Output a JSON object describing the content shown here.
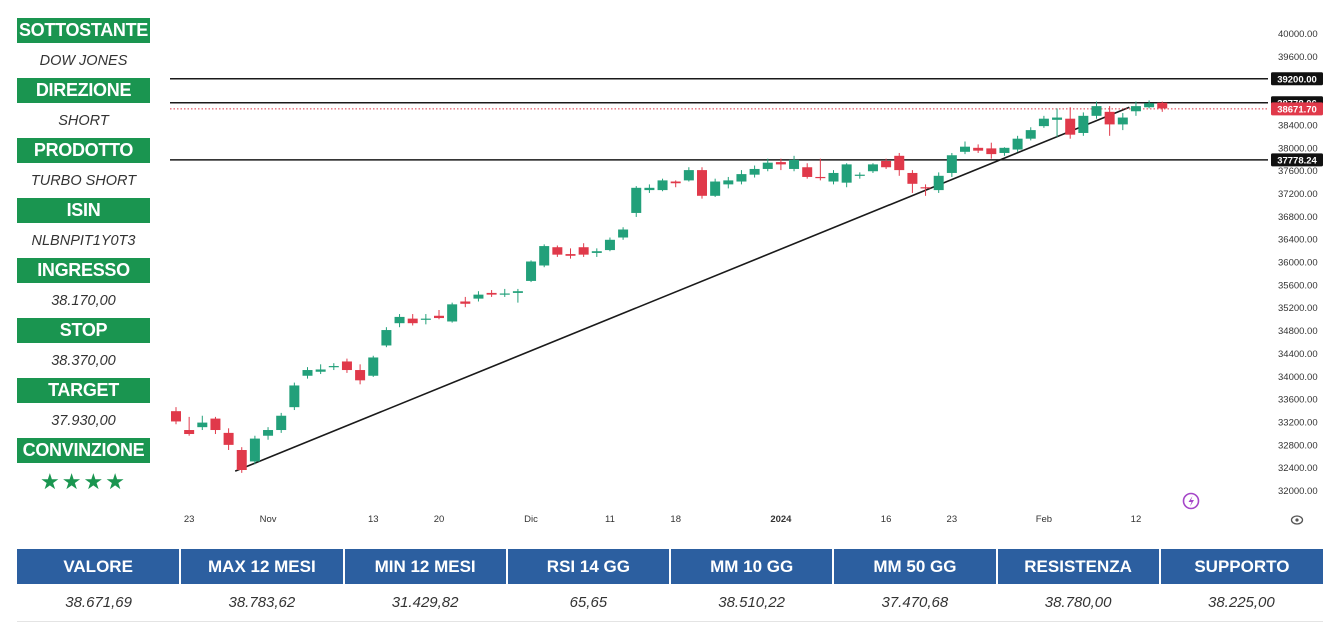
{
  "info_panel": {
    "items": [
      {
        "label": "SOTTOSTANTE",
        "value": "DOW JONES"
      },
      {
        "label": "DIREZIONE",
        "value": "SHORT"
      },
      {
        "label": "PRODOTTO",
        "value": "TURBO SHORT"
      },
      {
        "label": "ISIN",
        "value": "NLBNPIT1Y0T3"
      },
      {
        "label": "INGRESSO",
        "value": "38.170,00"
      },
      {
        "label": "STOP",
        "value": "38.370,00"
      },
      {
        "label": "TARGET",
        "value": "37.930,00"
      },
      {
        "label": "CONVINZIONE",
        "value": "★★★★"
      }
    ]
  },
  "stats": {
    "headers": [
      "VALORE",
      "MAX 12 MESI",
      "MIN 12 MESI",
      "RSI 14 GG",
      "MM 10 GG",
      "MM 50 GG",
      "RESISTENZA",
      "SUPPORTO"
    ],
    "values": [
      "38.671,69",
      "38.783,62",
      "31.429,82",
      "65,65",
      "38.510,22",
      "37.470,68",
      "38.780,00",
      "38.225,00"
    ]
  },
  "chart_data": {
    "type": "candlestick",
    "colors": {
      "up": "#22a07a",
      "down": "#e0394a"
    },
    "ylim": [
      31800,
      40200
    ],
    "y_ticks": [
      32000,
      32400,
      32800,
      33200,
      33600,
      34000,
      34400,
      34800,
      35200,
      35600,
      36000,
      36400,
      36800,
      37200,
      37600,
      38000,
      38400,
      38800,
      39200,
      39600,
      40000
    ],
    "y_tick_labels": [
      "32000.00",
      "32400.00",
      "32800.00",
      "33200.00",
      "33600.00",
      "34000.00",
      "34400.00",
      "34800.00",
      "35200.00",
      "35600.00",
      "36000.00",
      "36400.00",
      "36800.00",
      "37200.00",
      "37600.00",
      "38000.00",
      "38400.00",
      "38800.00",
      "39200.00",
      "39600.00",
      "40000.00"
    ],
    "x_tick_labels": [
      {
        "label": "23",
        "index": 1
      },
      {
        "label": "Nov",
        "index": 7
      },
      {
        "label": "13",
        "index": 15
      },
      {
        "label": "20",
        "index": 20
      },
      {
        "label": "Dic",
        "index": 27
      },
      {
        "label": "11",
        "index": 33
      },
      {
        "label": "18",
        "index": 38
      },
      {
        "label": "2024",
        "index": 46
      },
      {
        "label": "16",
        "index": 54
      },
      {
        "label": "23",
        "index": 59
      },
      {
        "label": "Feb",
        "index": 66
      },
      {
        "label": "12",
        "index": 73
      }
    ],
    "horizontal_levels": [
      {
        "value": 39200,
        "label": "39200.00",
        "style": "solid",
        "tag": "dark"
      },
      {
        "value": 38778.06,
        "label": "38778.06",
        "style": "solid",
        "tag": "dark"
      },
      {
        "value": 38671.7,
        "label": "38671.70",
        "style": "dotted",
        "tag": "red"
      },
      {
        "value": 37778.24,
        "label": "37778.24",
        "style": "solid",
        "tag": "dark"
      }
    ],
    "trendline": [
      {
        "index": 4.5,
        "value": 32330
      },
      {
        "index": 72.5,
        "value": 38700
      }
    ],
    "candles": [
      {
        "o": 33380,
        "h": 33450,
        "l": 33150,
        "c": 33200
      },
      {
        "o": 33050,
        "h": 33280,
        "l": 32950,
        "c": 32980
      },
      {
        "o": 33100,
        "h": 33300,
        "l": 33050,
        "c": 33180
      },
      {
        "o": 33250,
        "h": 33280,
        "l": 32980,
        "c": 33050
      },
      {
        "o": 33000,
        "h": 33080,
        "l": 32700,
        "c": 32790
      },
      {
        "o": 32700,
        "h": 32750,
        "l": 32300,
        "c": 32350
      },
      {
        "o": 32500,
        "h": 32950,
        "l": 32450,
        "c": 32900
      },
      {
        "o": 32950,
        "h": 33100,
        "l": 32880,
        "c": 33050
      },
      {
        "o": 33050,
        "h": 33350,
        "l": 33000,
        "c": 33300
      },
      {
        "o": 33450,
        "h": 33880,
        "l": 33400,
        "c": 33830
      },
      {
        "o": 34000,
        "h": 34150,
        "l": 33950,
        "c": 34100
      },
      {
        "o": 34070,
        "h": 34200,
        "l": 34030,
        "c": 34110
      },
      {
        "o": 34150,
        "h": 34220,
        "l": 34100,
        "c": 34170
      },
      {
        "o": 34250,
        "h": 34300,
        "l": 34050,
        "c": 34100
      },
      {
        "o": 34100,
        "h": 34200,
        "l": 33850,
        "c": 33920
      },
      {
        "o": 34000,
        "h": 34350,
        "l": 33980,
        "c": 34320
      },
      {
        "o": 34530,
        "h": 34850,
        "l": 34500,
        "c": 34800
      },
      {
        "o": 34920,
        "h": 35080,
        "l": 34850,
        "c": 35030
      },
      {
        "o": 35000,
        "h": 35080,
        "l": 34880,
        "c": 34920
      },
      {
        "o": 34980,
        "h": 35080,
        "l": 34900,
        "c": 35000
      },
      {
        "o": 35050,
        "h": 35150,
        "l": 34990,
        "c": 35010
      },
      {
        "o": 34950,
        "h": 35280,
        "l": 34930,
        "c": 35250
      },
      {
        "o": 35300,
        "h": 35380,
        "l": 35200,
        "c": 35260
      },
      {
        "o": 35350,
        "h": 35480,
        "l": 35300,
        "c": 35420
      },
      {
        "o": 35450,
        "h": 35500,
        "l": 35380,
        "c": 35420
      },
      {
        "o": 35420,
        "h": 35520,
        "l": 35380,
        "c": 35440
      },
      {
        "o": 35450,
        "h": 35520,
        "l": 35280,
        "c": 35480
      },
      {
        "o": 35660,
        "h": 36020,
        "l": 35640,
        "c": 36000
      },
      {
        "o": 35930,
        "h": 36300,
        "l": 35900,
        "c": 36270
      },
      {
        "o": 36250,
        "h": 36280,
        "l": 36080,
        "c": 36120
      },
      {
        "o": 36130,
        "h": 36230,
        "l": 36050,
        "c": 36100
      },
      {
        "o": 36250,
        "h": 36320,
        "l": 36080,
        "c": 36120
      },
      {
        "o": 36150,
        "h": 36230,
        "l": 36080,
        "c": 36180
      },
      {
        "o": 36200,
        "h": 36420,
        "l": 36180,
        "c": 36380
      },
      {
        "o": 36420,
        "h": 36600,
        "l": 36380,
        "c": 36560
      },
      {
        "o": 36850,
        "h": 37320,
        "l": 36780,
        "c": 37290
      },
      {
        "o": 37250,
        "h": 37350,
        "l": 37200,
        "c": 37290
      },
      {
        "o": 37250,
        "h": 37450,
        "l": 37230,
        "c": 37420
      },
      {
        "o": 37400,
        "h": 37420,
        "l": 37300,
        "c": 37370
      },
      {
        "o": 37420,
        "h": 37650,
        "l": 37400,
        "c": 37600
      },
      {
        "o": 37600,
        "h": 37650,
        "l": 37100,
        "c": 37150
      },
      {
        "o": 37150,
        "h": 37450,
        "l": 37130,
        "c": 37400
      },
      {
        "o": 37350,
        "h": 37480,
        "l": 37280,
        "c": 37420
      },
      {
        "o": 37400,
        "h": 37600,
        "l": 37350,
        "c": 37530
      },
      {
        "o": 37520,
        "h": 37680,
        "l": 37470,
        "c": 37620
      },
      {
        "o": 37620,
        "h": 37800,
        "l": 37580,
        "c": 37730
      },
      {
        "o": 37740,
        "h": 37800,
        "l": 37600,
        "c": 37700
      },
      {
        "o": 37620,
        "h": 37850,
        "l": 37580,
        "c": 37780
      },
      {
        "o": 37650,
        "h": 37720,
        "l": 37450,
        "c": 37480
      },
      {
        "o": 37480,
        "h": 37800,
        "l": 37420,
        "c": 37470
      },
      {
        "o": 37400,
        "h": 37600,
        "l": 37350,
        "c": 37550
      },
      {
        "o": 37380,
        "h": 37720,
        "l": 37300,
        "c": 37700
      },
      {
        "o": 37500,
        "h": 37560,
        "l": 37450,
        "c": 37520
      },
      {
        "o": 37580,
        "h": 37720,
        "l": 37550,
        "c": 37700
      },
      {
        "o": 37760,
        "h": 37800,
        "l": 37620,
        "c": 37650
      },
      {
        "o": 37850,
        "h": 37900,
        "l": 37500,
        "c": 37600
      },
      {
        "o": 37550,
        "h": 37600,
        "l": 37200,
        "c": 37360
      },
      {
        "o": 37300,
        "h": 37350,
        "l": 37150,
        "c": 37280
      },
      {
        "o": 37250,
        "h": 37560,
        "l": 37200,
        "c": 37500
      },
      {
        "o": 37550,
        "h": 37900,
        "l": 37480,
        "c": 37860
      },
      {
        "o": 37920,
        "h": 38100,
        "l": 37880,
        "c": 38010
      },
      {
        "o": 37990,
        "h": 38050,
        "l": 37900,
        "c": 37940
      },
      {
        "o": 37980,
        "h": 38080,
        "l": 37800,
        "c": 37880
      },
      {
        "o": 37900,
        "h": 38000,
        "l": 37850,
        "c": 37990
      },
      {
        "o": 37960,
        "h": 38200,
        "l": 37920,
        "c": 38150
      },
      {
        "o": 38150,
        "h": 38350,
        "l": 38120,
        "c": 38300
      },
      {
        "o": 38370,
        "h": 38550,
        "l": 38340,
        "c": 38500
      },
      {
        "o": 38480,
        "h": 38680,
        "l": 38180,
        "c": 38520
      },
      {
        "o": 38500,
        "h": 38700,
        "l": 38150,
        "c": 38220
      },
      {
        "o": 38250,
        "h": 38610,
        "l": 38200,
        "c": 38550
      },
      {
        "o": 38550,
        "h": 38800,
        "l": 38500,
        "c": 38720
      },
      {
        "o": 38620,
        "h": 38720,
        "l": 38200,
        "c": 38400
      },
      {
        "o": 38400,
        "h": 38600,
        "l": 38300,
        "c": 38520
      },
      {
        "o": 38630,
        "h": 38800,
        "l": 38550,
        "c": 38720
      },
      {
        "o": 38700,
        "h": 38820,
        "l": 38680,
        "c": 38770
      },
      {
        "o": 38780,
        "h": 38800,
        "l": 38620,
        "c": 38680
      }
    ]
  }
}
